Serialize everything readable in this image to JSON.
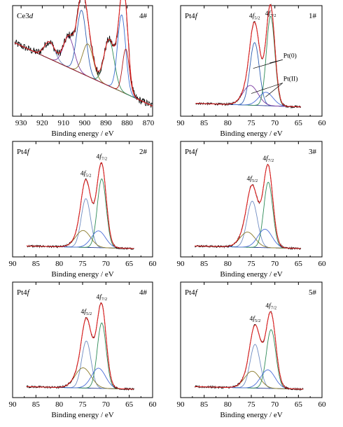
{
  "chart_data": [
    {
      "type": "line",
      "id": "ce3d",
      "panel_label": "Ce3",
      "panel_label_italic": "d",
      "sample": "4#",
      "xlabel": "Binding energy / eV",
      "xlim": [
        934,
        868
      ],
      "xticks": [
        930,
        920,
        910,
        900,
        890,
        880,
        870
      ],
      "ylim": [
        0,
        100
      ],
      "background": [
        [
          933,
          88
        ],
        [
          868,
          6
        ]
      ],
      "peaks": [
        {
          "center": 916.5,
          "height": 22,
          "width": 2.5,
          "color": "#6f8cc2"
        },
        {
          "center": 907.5,
          "height": 40,
          "width": 2.6,
          "color": "#7a3aa0"
        },
        {
          "center": 901.5,
          "height": 82,
          "width": 2.2,
          "color": "#2f5fb2"
        },
        {
          "center": 898.5,
          "height": 42,
          "width": 2.5,
          "color": "#8a7a2a"
        },
        {
          "center": 888.5,
          "height": 60,
          "width": 2.4,
          "color": "#2e8b57"
        },
        {
          "center": 882.6,
          "height": 100,
          "width": 1.9,
          "color": "#3b6fd0"
        },
        {
          "center": 880.6,
          "height": 58,
          "width": 1.6,
          "color": "#b01818"
        }
      ],
      "series": [
        {
          "role": "raw",
          "color": "#000000"
        },
        {
          "role": "envelope",
          "color": "#e02020"
        },
        {
          "role": "background",
          "color": "#2a3b8f"
        }
      ]
    },
    {
      "type": "line",
      "id": "pt1",
      "panel_label": "Pt4",
      "panel_label_italic": "f",
      "sample": "1#",
      "xlabel": "Binding energy / eV",
      "xlim": [
        90,
        60
      ],
      "xticks": [
        90,
        85,
        80,
        75,
        70,
        65,
        60
      ],
      "ylim": [
        0,
        100
      ],
      "background": [
        [
          86.8,
          5
        ],
        [
          64.5,
          1
        ]
      ],
      "peaks": [
        {
          "center": 74.3,
          "height": 70,
          "width": 1.0,
          "color": "#2f5fb2"
        },
        {
          "center": 75.2,
          "height": 22,
          "width": 1.6,
          "color": "#7a3aa0"
        },
        {
          "center": 70.9,
          "height": 100,
          "width": 0.9,
          "color": "#2e8b57"
        },
        {
          "center": 71.9,
          "height": 15,
          "width": 1.5,
          "color": "#4a6ed8"
        }
      ],
      "annotations": [
        {
          "label": "4",
          "label_italic": "f",
          "sub": "5/2",
          "x": 74.3
        },
        {
          "label": "4",
          "label_italic": "f",
          "sub": "7/2",
          "x": 70.9
        },
        {
          "label": "Pt(0)",
          "x": 68.2,
          "y": 56
        },
        {
          "label": "Pt(II)",
          "x": 68.2,
          "y": 30
        }
      ]
    },
    {
      "type": "line",
      "id": "pt2",
      "panel_label": "Pt4",
      "panel_label_italic": "f",
      "sample": "2#",
      "xlabel": "Binding energy / eV",
      "xlim": [
        90,
        60
      ],
      "xticks": [
        90,
        85,
        80,
        75,
        70,
        65,
        60
      ],
      "ylim": [
        0,
        100
      ],
      "background": [
        [
          87,
          3
        ],
        [
          64,
          0
        ]
      ],
      "peaks": [
        {
          "center": 74.3,
          "height": 58,
          "width": 1.0,
          "color": "#6f8cc2"
        },
        {
          "center": 74.9,
          "height": 20,
          "width": 1.6,
          "color": "#8a7a2a"
        },
        {
          "center": 70.9,
          "height": 82,
          "width": 0.95,
          "color": "#2e8b57"
        },
        {
          "center": 71.6,
          "height": 20,
          "width": 1.5,
          "color": "#4a6ed8"
        }
      ],
      "annotations": [
        {
          "label": "4",
          "label_italic": "f",
          "sub": "5/2",
          "x": 74.3
        },
        {
          "label": "4",
          "label_italic": "f",
          "sub": "7/2",
          "x": 70.9
        }
      ]
    },
    {
      "type": "line",
      "id": "pt3",
      "panel_label": "Pt4",
      "panel_label_italic": "f",
      "sample": "3#",
      "xlabel": "Binding energy / eV",
      "xlim": [
        90,
        60
      ],
      "xticks": [
        90,
        85,
        80,
        75,
        70,
        65,
        60
      ],
      "ylim": [
        0,
        100
      ],
      "background": [
        [
          87,
          3
        ],
        [
          64.5,
          0
        ]
      ],
      "peaks": [
        {
          "center": 74.8,
          "height": 55,
          "width": 1.1,
          "color": "#6f8cc2"
        },
        {
          "center": 75.8,
          "height": 18,
          "width": 1.6,
          "color": "#8a7a2a"
        },
        {
          "center": 71.4,
          "height": 78,
          "width": 0.95,
          "color": "#2e8b57"
        },
        {
          "center": 72.1,
          "height": 22,
          "width": 1.5,
          "color": "#4a6ed8"
        }
      ],
      "annotations": [
        {
          "label": "4",
          "label_italic": "f",
          "sub": "5/2",
          "x": 74.8
        },
        {
          "label": "4",
          "label_italic": "f",
          "sub": "7/2",
          "x": 71.4
        }
      ]
    },
    {
      "type": "line",
      "id": "pt4",
      "panel_label": "Pt4",
      "panel_label_italic": "f",
      "sample": "4#",
      "xlabel": "Binding energy / eV",
      "xlim": [
        90,
        60
      ],
      "xticks": [
        90,
        85,
        80,
        75,
        70,
        65,
        60
      ],
      "ylim": [
        0,
        100
      ],
      "background": [
        [
          87,
          3
        ],
        [
          64,
          0
        ]
      ],
      "peaks": [
        {
          "center": 74.2,
          "height": 56,
          "width": 1.0,
          "color": "#6f8cc2"
        },
        {
          "center": 74.9,
          "height": 24,
          "width": 1.7,
          "color": "#8a7a2a"
        },
        {
          "center": 70.9,
          "height": 78,
          "width": 0.95,
          "color": "#2e8b57"
        },
        {
          "center": 71.6,
          "height": 24,
          "width": 1.5,
          "color": "#4a6ed8"
        }
      ],
      "annotations": [
        {
          "label": "4",
          "label_italic": "f",
          "sub": "5/2",
          "x": 74.2
        },
        {
          "label": "4",
          "label_italic": "f",
          "sub": "7/2",
          "x": 70.9
        }
      ]
    },
    {
      "type": "line",
      "id": "pt5",
      "panel_label": "Pt4",
      "panel_label_italic": "f",
      "sample": "5#",
      "xlabel": "Binding energy / eV",
      "xlim": [
        90,
        60
      ],
      "xticks": [
        90,
        85,
        80,
        75,
        70,
        65,
        60
      ],
      "ylim": [
        0,
        100
      ],
      "background": [
        [
          87,
          3
        ],
        [
          64,
          0
        ]
      ],
      "peaks": [
        {
          "center": 74.2,
          "height": 52,
          "width": 1.05,
          "color": "#6f8cc2"
        },
        {
          "center": 74.8,
          "height": 20,
          "width": 1.6,
          "color": "#8a7a2a"
        },
        {
          "center": 70.8,
          "height": 70,
          "width": 1.0,
          "color": "#2e8b57"
        },
        {
          "center": 71.5,
          "height": 22,
          "width": 1.5,
          "color": "#4a6ed8"
        }
      ],
      "annotations": [
        {
          "label": "4",
          "label_italic": "f",
          "sub": "5/2",
          "x": 74.2
        },
        {
          "label": "4",
          "label_italic": "f",
          "sub": "7/2",
          "x": 70.8
        }
      ]
    }
  ]
}
